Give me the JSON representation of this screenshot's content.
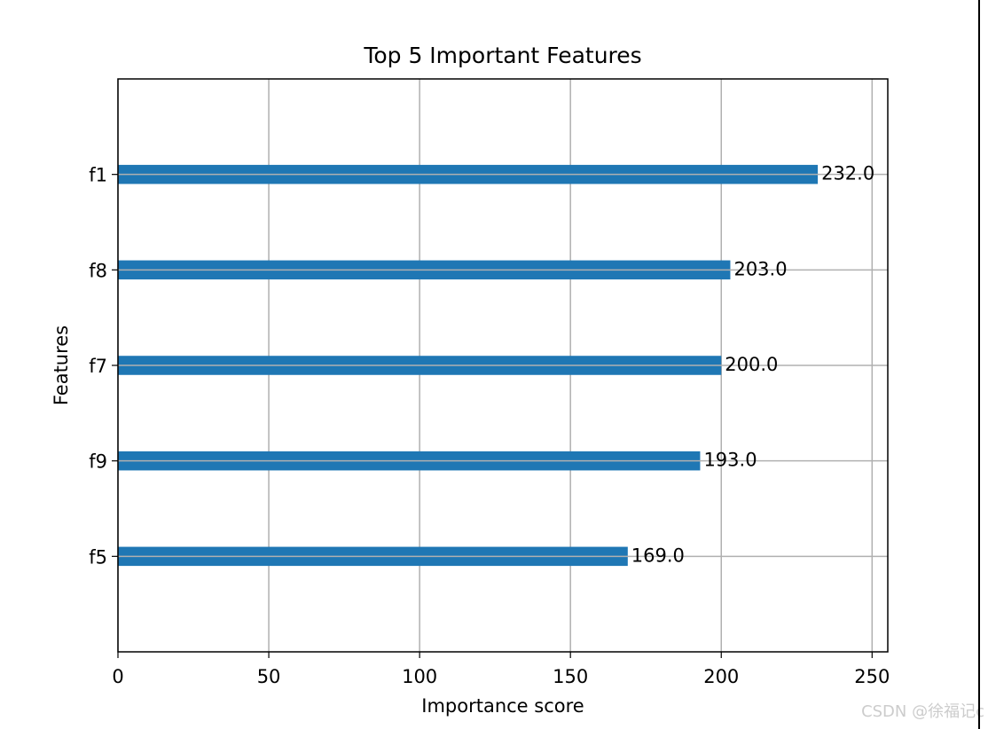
{
  "chart_data": {
    "type": "barh",
    "title": "Top 5 Important Features",
    "xlabel": "Importance score",
    "ylabel": "Features",
    "categories": [
      "f1",
      "f8",
      "f7",
      "f9",
      "f5"
    ],
    "values": [
      232,
      203,
      200,
      193,
      169
    ],
    "value_labels": [
      "232.0",
      "203.0",
      "200.0",
      "193.0",
      "169.0"
    ],
    "color": "#1f77b4",
    "xlim": [
      0,
      255.2
    ],
    "xticks": [
      0,
      50,
      100,
      150,
      200,
      250
    ],
    "grid": true
  },
  "watermark": "CSDN @徐福记c"
}
